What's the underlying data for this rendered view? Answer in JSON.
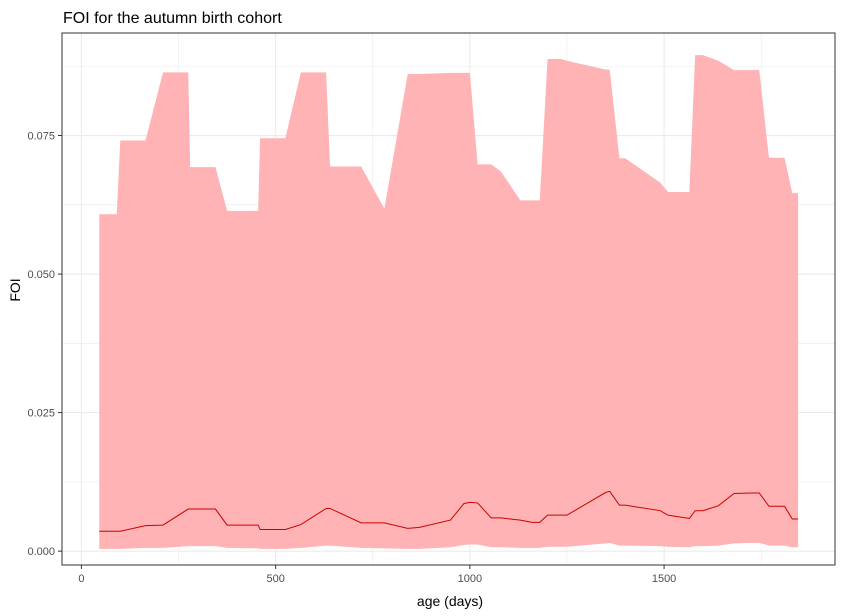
{
  "chart_data": {
    "type": "area",
    "title": "FOI for the autumn birth cohort",
    "xlabel": "age (days)",
    "ylabel": "FOI",
    "xlim": [
      -50,
      1940
    ],
    "ylim": [
      -0.0025,
      0.0935
    ],
    "x_ticks": [
      {
        "value": 0,
        "label": "0"
      },
      {
        "value": 500,
        "label": "500"
      },
      {
        "value": 1000,
        "label": "1000"
      },
      {
        "value": 1500,
        "label": "1500"
      }
    ],
    "y_ticks": [
      {
        "value": 0.0,
        "label": "0.000"
      },
      {
        "value": 0.025,
        "label": "0.025"
      },
      {
        "value": 0.05,
        "label": "0.050"
      },
      {
        "value": 0.075,
        "label": "0.075"
      }
    ],
    "grid": true,
    "legend": "none",
    "ribbon_color": "#ffb3b5",
    "line_color": "#cc0000",
    "series": [
      {
        "x": [
          46,
          91,
          100,
          165,
          210,
          275,
          280,
          345,
          375,
          455,
          460,
          525,
          565,
          630,
          640,
          720,
          780,
          840,
          870,
          950,
          985,
          1000,
          1020,
          1055,
          1080,
          1130,
          1160,
          1180,
          1200,
          1235,
          1250,
          1350,
          1360,
          1385,
          1400,
          1490,
          1510,
          1565,
          1580,
          1600,
          1640,
          1680,
          1725,
          1745,
          1770,
          1810,
          1830,
          1845
        ],
        "y": [
          0.0036,
          0.0036,
          0.0036,
          0.0046,
          0.0047,
          0.0076,
          0.0076,
          0.0076,
          0.0047,
          0.0047,
          0.0039,
          0.0039,
          0.0048,
          0.0077,
          0.0077,
          0.0051,
          0.0051,
          0.0041,
          0.0043,
          0.0056,
          0.0086,
          0.0088,
          0.0087,
          0.006,
          0.006,
          0.0056,
          0.0052,
          0.0052,
          0.0065,
          0.0065,
          0.0065,
          0.0106,
          0.0108,
          0.0083,
          0.0083,
          0.0073,
          0.0065,
          0.0059,
          0.0073,
          0.0073,
          0.0082,
          0.0104,
          0.0105,
          0.0105,
          0.0081,
          0.0081,
          0.0058,
          0.0058
        ],
        "ymin": [
          0.0004,
          0.0004,
          0.0004,
          0.0006,
          0.0006,
          0.0009,
          0.0009,
          0.0009,
          0.0006,
          0.0005,
          0.0004,
          0.0004,
          0.0006,
          0.001,
          0.001,
          0.0006,
          0.0005,
          0.0004,
          0.0004,
          0.0007,
          0.0011,
          0.0012,
          0.0012,
          0.0007,
          0.0007,
          0.0006,
          0.0006,
          0.0006,
          0.0008,
          0.0008,
          0.0008,
          0.0014,
          0.0015,
          0.001,
          0.001,
          0.0009,
          0.0008,
          0.0007,
          0.0009,
          0.0009,
          0.001,
          0.0014,
          0.0015,
          0.0015,
          0.001,
          0.001,
          0.0007,
          0.0007
        ],
        "ymax": [
          0.0608,
          0.0608,
          0.0741,
          0.0741,
          0.0864,
          0.0864,
          0.0693,
          0.0693,
          0.0614,
          0.0614,
          0.0745,
          0.0745,
          0.0864,
          0.0864,
          0.0694,
          0.0694,
          0.0618,
          0.0861,
          0.0861,
          0.0863,
          0.0863,
          0.0863,
          0.0698,
          0.0698,
          0.0685,
          0.0633,
          0.0633,
          0.0633,
          0.0888,
          0.0888,
          0.0885,
          0.0869,
          0.0869,
          0.0709,
          0.0709,
          0.0665,
          0.0648,
          0.0648,
          0.0895,
          0.0895,
          0.0885,
          0.0868,
          0.0868,
          0.0868,
          0.071,
          0.071,
          0.0646,
          0.0646
        ]
      }
    ]
  }
}
